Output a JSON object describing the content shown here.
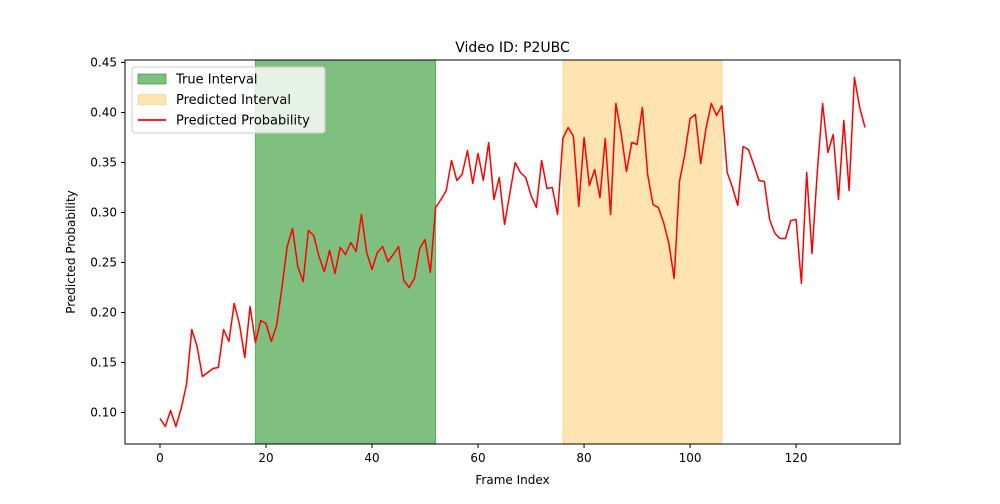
{
  "chart_data": {
    "type": "line",
    "title": "Video ID: P2UBC",
    "xlabel": "Frame Index",
    "ylabel": "Predicted Probability",
    "xlim": [
      -6.6,
      139.6
    ],
    "ylim": [
      0.0685,
      0.4525
    ],
    "xticks": [
      0,
      20,
      40,
      60,
      80,
      100,
      120
    ],
    "yticks": [
      0.1,
      0.15,
      0.2,
      0.25,
      0.3,
      0.35,
      0.4,
      0.45
    ],
    "grid": false,
    "legend_position": "top-left",
    "intervals": [
      {
        "name": "True Interval",
        "start": 18,
        "end": 52,
        "color": "#008000",
        "opacity": 0.5
      },
      {
        "name": "Predicted Interval",
        "start": 76,
        "end": 106,
        "color": "#ffa500",
        "opacity": 0.3
      }
    ],
    "series": [
      {
        "name": "Predicted Probability",
        "color": "#ff0000",
        "x": [
          0,
          1,
          2,
          3,
          4,
          5,
          6,
          7,
          8,
          9,
          10,
          11,
          12,
          13,
          14,
          15,
          16,
          17,
          18,
          19,
          20,
          21,
          22,
          23,
          24,
          25,
          26,
          27,
          28,
          29,
          30,
          31,
          32,
          33,
          34,
          35,
          36,
          37,
          38,
          39,
          40,
          41,
          42,
          43,
          44,
          45,
          46,
          47,
          48,
          49,
          50,
          51,
          52,
          53,
          54,
          55,
          56,
          57,
          58,
          59,
          60,
          61,
          62,
          63,
          64,
          65,
          66,
          67,
          68,
          69,
          70,
          71,
          72,
          73,
          74,
          75,
          76,
          77,
          78,
          79,
          80,
          81,
          82,
          83,
          84,
          85,
          86,
          87,
          88,
          89,
          90,
          91,
          92,
          93,
          94,
          95,
          96,
          97,
          98,
          99,
          100,
          101,
          102,
          103,
          104,
          105,
          106,
          107,
          108,
          109,
          110,
          111,
          112,
          113,
          114,
          115,
          116,
          117,
          118,
          119,
          120,
          121,
          122,
          123,
          124,
          125,
          126,
          127,
          128,
          129,
          130,
          131,
          132,
          133
        ],
        "values": [
          0.094,
          0.086,
          0.102,
          0.086,
          0.104,
          0.128,
          0.183,
          0.166,
          0.136,
          0.14,
          0.144,
          0.145,
          0.183,
          0.171,
          0.209,
          0.188,
          0.155,
          0.206,
          0.17,
          0.192,
          0.189,
          0.171,
          0.187,
          0.225,
          0.266,
          0.284,
          0.246,
          0.231,
          0.282,
          0.277,
          0.256,
          0.241,
          0.262,
          0.239,
          0.265,
          0.258,
          0.27,
          0.261,
          0.298,
          0.26,
          0.243,
          0.26,
          0.266,
          0.251,
          0.258,
          0.266,
          0.232,
          0.225,
          0.234,
          0.264,
          0.273,
          0.24,
          0.305,
          0.313,
          0.322,
          0.352,
          0.332,
          0.338,
          0.362,
          0.329,
          0.359,
          0.332,
          0.37,
          0.313,
          0.335,
          0.288,
          0.319,
          0.35,
          0.34,
          0.335,
          0.317,
          0.305,
          0.352,
          0.324,
          0.325,
          0.298,
          0.374,
          0.385,
          0.376,
          0.306,
          0.375,
          0.327,
          0.343,
          0.315,
          0.374,
          0.298,
          0.409,
          0.379,
          0.341,
          0.37,
          0.368,
          0.405,
          0.338,
          0.308,
          0.305,
          0.29,
          0.269,
          0.234,
          0.331,
          0.358,
          0.394,
          0.398,
          0.349,
          0.384,
          0.409,
          0.397,
          0.407,
          0.34,
          0.325,
          0.307,
          0.366,
          0.363,
          0.348,
          0.332,
          0.331,
          0.293,
          0.279,
          0.274,
          0.274,
          0.292,
          0.293,
          0.229,
          0.34,
          0.259,
          0.341,
          0.409,
          0.36,
          0.378,
          0.313,
          0.392,
          0.322,
          0.435,
          0.405,
          0.385
        ]
      }
    ]
  }
}
